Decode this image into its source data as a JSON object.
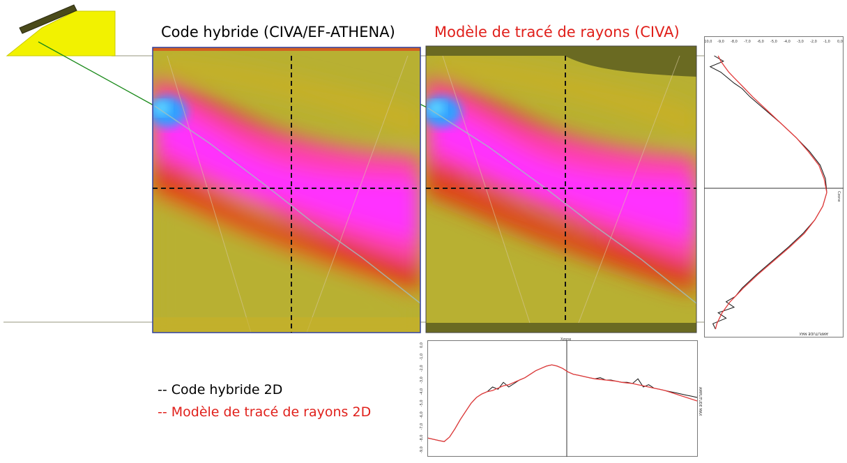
{
  "titles": {
    "hybrid": "Code hybride (CIVA/EF-ATHENA)",
    "raytracing": "Modèle de tracé de rayons (CIVA)"
  },
  "legend": {
    "hybrid": "-- Code hybride 2D",
    "raytracing": "-- Modèle de tracé de rayons 2D"
  },
  "colors": {
    "hybrid_title": "#000000",
    "raytracing_title": "#e0201b",
    "hybrid_curve": "#111111",
    "raytracing_curve": "#e23a3a",
    "probe": "#f2f200",
    "beam_line": "#1a8a1a"
  },
  "chart_data": [
    {
      "type": "heatmap",
      "panel": "hybrid",
      "colormap": [
        "#b8b032",
        "#d9b020",
        "#e04018",
        "#ff40b0",
        "#ff30ff",
        "#30a0ff"
      ],
      "crosshair": "dashed-black"
    },
    {
      "type": "heatmap",
      "panel": "raytracing",
      "colormap": [
        "#b8b032",
        "#d9b020",
        "#e04018",
        "#ff40b0",
        "#ff30ff",
        "#30a0ff"
      ],
      "crosshair": "dashed-black"
    },
    {
      "type": "line",
      "panel": "horizontal-profile",
      "xlabel": "Xzone",
      "ylabel": "AMPLITUDE MAX",
      "y_ticks": [
        "0,0",
        "-1,0",
        "-2,0",
        "-3,0",
        "-4,0",
        "-5,0",
        "-6,0",
        "-7,0",
        "-8,0",
        "-9,0"
      ],
      "series": [
        {
          "name": "Code hybride 2D",
          "x": [
            0,
            2,
            4,
            6,
            8,
            10,
            12,
            14,
            16,
            18,
            20,
            22,
            24,
            26,
            28,
            30,
            32,
            34,
            36,
            38,
            40,
            42,
            44,
            46,
            48,
            50,
            52,
            54,
            56,
            58,
            60,
            62,
            64,
            66,
            68,
            70,
            72,
            74,
            76,
            78,
            80,
            82,
            84,
            86,
            88,
            90,
            92,
            94,
            96,
            98,
            100
          ],
          "y": [
            -8.0,
            -8.1,
            -8.2,
            -8.3,
            -7.9,
            -7.2,
            -6.4,
            -5.7,
            -5.0,
            -4.5,
            -4.2,
            -4.0,
            -3.6,
            -3.8,
            -3.2,
            -3.6,
            -3.3,
            -3.0,
            -2.8,
            -2.5,
            -2.2,
            -2.0,
            -1.8,
            -1.7,
            -1.8,
            -2.0,
            -2.3,
            -2.5,
            -2.6,
            -2.7,
            -2.8,
            -2.9,
            -2.8,
            -3.0,
            -3.0,
            -3.1,
            -3.2,
            -3.2,
            -3.3,
            -2.9,
            -3.6,
            -3.4,
            -3.7,
            -3.8,
            -3.9,
            -4.0,
            -4.1,
            -4.2,
            -4.3,
            -4.4,
            -4.5
          ]
        },
        {
          "name": "Modèle de tracé de rayons 2D",
          "x": [
            0,
            2,
            4,
            6,
            8,
            10,
            12,
            14,
            16,
            18,
            20,
            22,
            24,
            26,
            28,
            30,
            32,
            34,
            36,
            38,
            40,
            42,
            44,
            46,
            48,
            50,
            52,
            54,
            56,
            58,
            60,
            62,
            64,
            66,
            68,
            70,
            72,
            74,
            76,
            78,
            80,
            82,
            84,
            86,
            88,
            90,
            92,
            94,
            96,
            98,
            100
          ],
          "y": [
            -8.0,
            -8.1,
            -8.2,
            -8.3,
            -7.9,
            -7.2,
            -6.4,
            -5.7,
            -5.0,
            -4.5,
            -4.2,
            -4.0,
            -3.9,
            -3.7,
            -3.5,
            -3.4,
            -3.2,
            -3.0,
            -2.8,
            -2.5,
            -2.2,
            -2.0,
            -1.8,
            -1.7,
            -1.8,
            -2.0,
            -2.3,
            -2.5,
            -2.6,
            -2.7,
            -2.8,
            -2.9,
            -2.95,
            -3.0,
            -3.05,
            -3.1,
            -3.2,
            -3.25,
            -3.3,
            -3.4,
            -3.5,
            -3.6,
            -3.7,
            -3.8,
            -3.9,
            -4.05,
            -4.2,
            -4.35,
            -4.5,
            -4.65,
            -4.8
          ]
        }
      ]
    },
    {
      "type": "line",
      "panel": "vertical-profile",
      "xlabel": "AMPLITUDE MAX",
      "ylabel": "Czone",
      "x_ticks": [
        "-10,0",
        "-9,0",
        "-8,0",
        "-7,0",
        "-6,0",
        "-5,0",
        "-4,0",
        "-3,0",
        "-2,0",
        "-1,0",
        "0,0"
      ],
      "series": [
        {
          "name": "Code hybride 2D",
          "depth": [
            0,
            2,
            4,
            6,
            8,
            10,
            12,
            15,
            20,
            25,
            30,
            35,
            40,
            45,
            50,
            55,
            60,
            65,
            70,
            75,
            80,
            85,
            88,
            90,
            92,
            94,
            96,
            98,
            100
          ],
          "y": [
            -9.5,
            -8.8,
            -9.8,
            -9.0,
            -8.5,
            -8.0,
            -7.4,
            -6.8,
            -5.6,
            -4.4,
            -3.3,
            -2.3,
            -1.5,
            -1.1,
            -1.0,
            -1.3,
            -1.9,
            -2.8,
            -3.9,
            -5.1,
            -6.3,
            -7.4,
            -7.9,
            -8.6,
            -8.0,
            -9.2,
            -8.6,
            -9.6,
            -9.4
          ]
        },
        {
          "name": "Modèle de tracé de rayons 2D",
          "depth": [
            0,
            2,
            4,
            6,
            8,
            10,
            12,
            15,
            20,
            25,
            30,
            35,
            40,
            45,
            50,
            55,
            60,
            65,
            70,
            75,
            80,
            85,
            88,
            90,
            92,
            94,
            96,
            98,
            100
          ],
          "y": [
            -9.2,
            -9.0,
            -8.7,
            -8.4,
            -8.0,
            -7.6,
            -7.2,
            -6.6,
            -5.5,
            -4.4,
            -3.3,
            -2.4,
            -1.6,
            -1.2,
            -1.0,
            -1.3,
            -1.9,
            -2.7,
            -3.8,
            -5.0,
            -6.2,
            -7.3,
            -7.9,
            -8.3,
            -8.6,
            -8.9,
            -9.1,
            -9.3,
            -9.4
          ]
        }
      ]
    }
  ]
}
